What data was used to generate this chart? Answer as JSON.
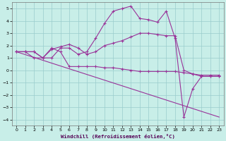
{
  "xlabel": "Windchill (Refroidissement éolien,°C)",
  "bg_color": "#c8eee8",
  "line_color": "#993399",
  "grid_color": "#99cccc",
  "ylim": [
    -4.5,
    5.5
  ],
  "xlim": [
    -0.5,
    23.5
  ],
  "yticks": [
    -4,
    -3,
    -2,
    -1,
    0,
    1,
    2,
    3,
    4,
    5
  ],
  "xticks": [
    0,
    1,
    2,
    3,
    4,
    5,
    6,
    7,
    8,
    9,
    10,
    11,
    12,
    13,
    14,
    15,
    16,
    17,
    18,
    19,
    20,
    21,
    22,
    23
  ],
  "curve1_x": [
    0,
    1,
    2,
    3,
    4,
    5,
    6,
    7,
    8,
    9,
    10,
    11,
    12,
    13,
    14,
    15,
    16,
    17,
    18,
    19,
    20,
    21,
    22,
    23
  ],
  "curve1_y": [
    1.5,
    1.5,
    1.5,
    1.0,
    1.0,
    1.8,
    1.8,
    1.3,
    1.5,
    2.6,
    3.8,
    4.8,
    5.0,
    5.2,
    4.2,
    4.1,
    3.9,
    4.8,
    2.6,
    -3.8,
    -1.5,
    -0.5,
    -0.5,
    -0.5
  ],
  "curve2_x": [
    0,
    1,
    2,
    3,
    4,
    5,
    6,
    7,
    8,
    9,
    10,
    11,
    12,
    13,
    14,
    15,
    16,
    17,
    18,
    19,
    20,
    21,
    22,
    23
  ],
  "curve2_y": [
    1.5,
    1.5,
    1.5,
    1.0,
    1.7,
    1.9,
    2.1,
    1.8,
    1.3,
    1.5,
    2.0,
    2.2,
    2.4,
    2.7,
    3.0,
    3.0,
    2.9,
    2.8,
    2.8,
    0.0,
    -0.3,
    -0.5,
    -0.5,
    -0.5
  ],
  "curve3_x": [
    0,
    1,
    2,
    3,
    4,
    5,
    6,
    7,
    8,
    9,
    10,
    11,
    12,
    13,
    14,
    15,
    16,
    17,
    18,
    19,
    20,
    21,
    22,
    23
  ],
  "curve3_y": [
    1.5,
    1.5,
    1.0,
    1.0,
    1.8,
    1.5,
    0.3,
    0.3,
    0.3,
    0.3,
    0.2,
    0.2,
    0.1,
    0.0,
    -0.1,
    -0.1,
    -0.1,
    -0.1,
    -0.1,
    -0.2,
    -0.3,
    -0.4,
    -0.4,
    -0.4
  ],
  "curve4_x": [
    0,
    23
  ],
  "curve4_y": [
    1.5,
    -3.8
  ]
}
